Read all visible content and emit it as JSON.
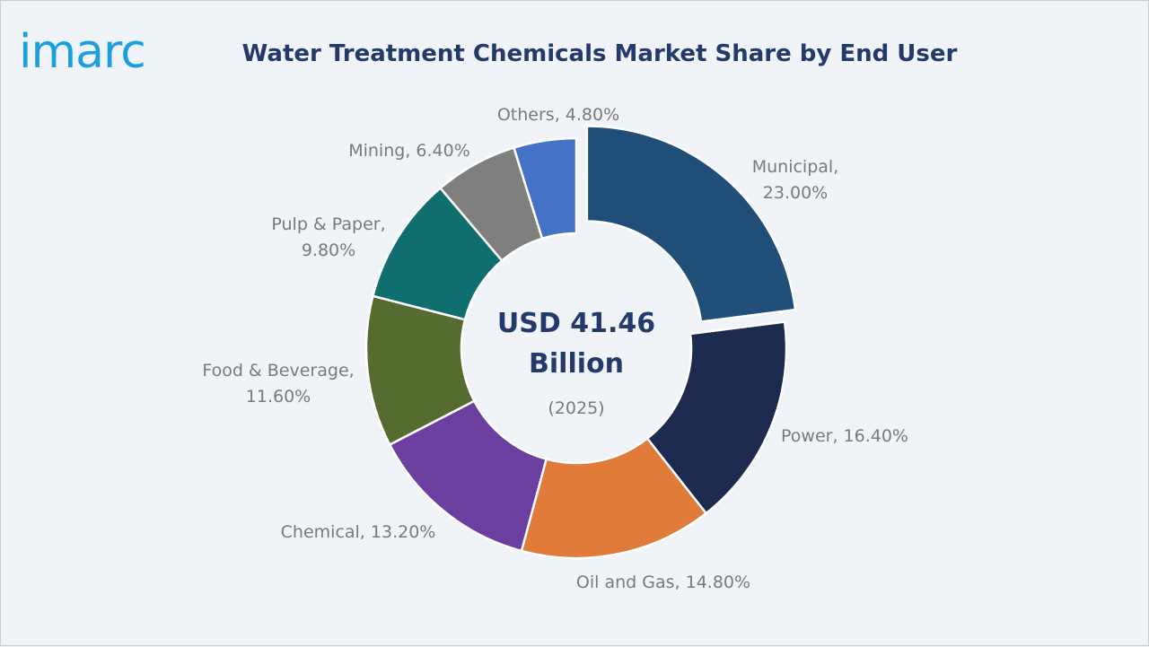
{
  "logo": {
    "text": "imarc",
    "color": "#1aa0de"
  },
  "page_title": "Water Treatment Chemicals Market Share by End User",
  "center": {
    "line1": "USD 41.46",
    "line2": "Billion",
    "year": "(2025)"
  },
  "chart_data": {
    "type": "pie",
    "variant": "donut",
    "title": "Water Treatment Chemicals Market Share by End User",
    "unit": "%",
    "slices": [
      {
        "label": "Municipal",
        "value": 23.0,
        "display": "23.00%",
        "color": "#1f4e79",
        "exploded": true,
        "label_lines": [
          "Municipal,",
          "23.00%"
        ]
      },
      {
        "label": "Power",
        "value": 16.4,
        "display": "16.40%",
        "color": "#1b2a4e",
        "exploded": false,
        "label_lines": [
          "Power, 16.40%"
        ]
      },
      {
        "label": "Oil and Gas",
        "value": 14.8,
        "display": "14.80%",
        "color": "#e07b39",
        "exploded": false,
        "label_lines": [
          "Oil and Gas, 14.80%"
        ]
      },
      {
        "label": "Chemical",
        "value": 13.2,
        "display": "13.20%",
        "color": "#6b3fa0",
        "exploded": false,
        "label_lines": [
          "Chemical, 13.20%"
        ]
      },
      {
        "label": "Food & Beverage",
        "value": 11.6,
        "display": "11.60%",
        "color": "#566b2f",
        "exploded": false,
        "label_lines": [
          "Food & Beverage,",
          "11.60%"
        ]
      },
      {
        "label": "Pulp & Paper",
        "value": 9.8,
        "display": "9.80%",
        "color": "#0f6e6e",
        "exploded": false,
        "label_lines": [
          "Pulp & Paper,",
          "9.80%"
        ]
      },
      {
        "label": "Mining",
        "value": 6.4,
        "display": "6.40%",
        "color": "#7f7f7f",
        "exploded": false,
        "label_lines": [
          "Mining, 6.40%"
        ]
      },
      {
        "label": "Others",
        "value": 4.8,
        "display": "4.80%",
        "color": "#4472c4",
        "exploded": false,
        "label_lines": [
          "Others, 4.80%"
        ]
      }
    ]
  }
}
